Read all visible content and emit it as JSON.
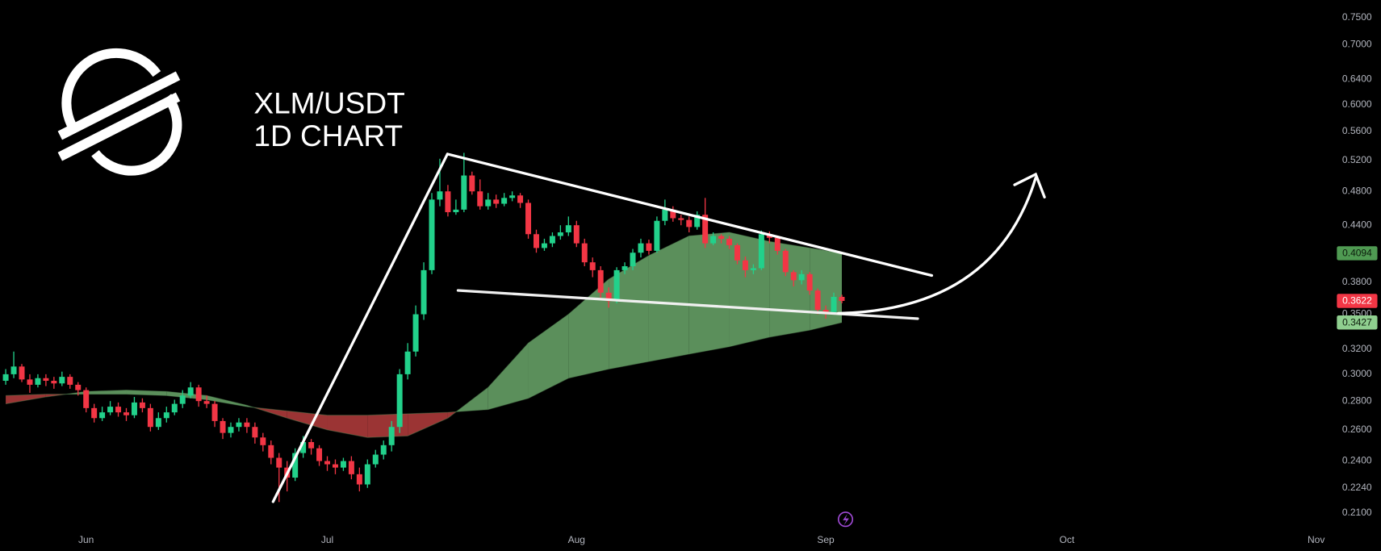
{
  "chart_data": {
    "type": "candlestick",
    "title": "XLM/USDT",
    "subtitle": "1D CHART",
    "log_scale": true,
    "grid": false,
    "colors": {
      "up": "#22d18b",
      "down": "#f23645"
    },
    "xlim": [
      -0.7,
      164.7
    ],
    "xticks": [
      {
        "value": 10,
        "label": "Jun"
      },
      {
        "value": 40,
        "label": "Jul"
      },
      {
        "value": 71,
        "label": "Aug"
      },
      {
        "value": 102,
        "label": "Sep"
      },
      {
        "value": 132,
        "label": "Oct"
      },
      {
        "value": 163,
        "label": "Nov"
      }
    ],
    "ylim": [
      0.202,
      0.785
    ],
    "yticks": [
      {
        "value": 0.75,
        "label": "0.7500"
      },
      {
        "value": 0.7,
        "label": "0.7000"
      },
      {
        "value": 0.64,
        "label": "0.6400"
      },
      {
        "value": 0.6,
        "label": "0.6000"
      },
      {
        "value": 0.56,
        "label": "0.5600"
      },
      {
        "value": 0.52,
        "label": "0.5200"
      },
      {
        "value": 0.48,
        "label": "0.4800"
      },
      {
        "value": 0.44,
        "label": "0.4400"
      },
      {
        "value": 0.38,
        "label": "0.3800"
      },
      {
        "value": 0.35,
        "label": "0.3500"
      },
      {
        "value": 0.32,
        "label": "0.3200"
      },
      {
        "value": 0.3,
        "label": "0.3000"
      },
      {
        "value": 0.28,
        "label": "0.2800"
      },
      {
        "value": 0.26,
        "label": "0.2600"
      },
      {
        "value": 0.24,
        "label": "0.2400"
      },
      {
        "value": 0.224,
        "label": "0.2240"
      },
      {
        "value": 0.21,
        "label": "0.2100"
      }
    ],
    "x": [
      0,
      1,
      2,
      3,
      4,
      5,
      6,
      7,
      8,
      9,
      10,
      11,
      12,
      13,
      14,
      15,
      16,
      17,
      18,
      19,
      20,
      21,
      22,
      23,
      24,
      25,
      26,
      27,
      28,
      29,
      30,
      31,
      32,
      33,
      34,
      35,
      36,
      37,
      38,
      39,
      40,
      41,
      42,
      43,
      44,
      45,
      46,
      47,
      48,
      49,
      50,
      51,
      52,
      53,
      54,
      55,
      56,
      57,
      58,
      59,
      60,
      61,
      62,
      63,
      64,
      65,
      66,
      67,
      68,
      69,
      70,
      71,
      72,
      73,
      74,
      75,
      76,
      77,
      78,
      79,
      80,
      81,
      82,
      83,
      84,
      85,
      86,
      87,
      88,
      89,
      90,
      91,
      92,
      93,
      94,
      95,
      96,
      97,
      98,
      99,
      100,
      101,
      102,
      103,
      104
    ],
    "open": [
      0.295,
      0.3,
      0.306,
      0.296,
      0.292,
      0.297,
      0.295,
      0.293,
      0.298,
      0.292,
      0.288,
      0.275,
      0.268,
      0.272,
      0.276,
      0.272,
      0.27,
      0.279,
      0.275,
      0.262,
      0.268,
      0.272,
      0.278,
      0.284,
      0.29,
      0.28,
      0.278,
      0.266,
      0.258,
      0.262,
      0.265,
      0.262,
      0.255,
      0.25,
      0.242,
      0.236,
      0.23,
      0.245,
      0.252,
      0.248,
      0.24,
      0.238,
      0.236,
      0.24,
      0.232,
      0.226,
      0.238,
      0.244,
      0.25,
      0.262,
      0.3,
      0.318,
      0.35,
      0.392,
      0.47,
      0.48,
      0.455,
      0.458,
      0.5,
      0.48,
      0.462,
      0.47,
      0.465,
      0.472,
      0.475,
      0.466,
      0.43,
      0.415,
      0.42,
      0.428,
      0.432,
      0.44,
      0.42,
      0.4,
      0.392,
      0.37,
      0.362,
      0.392,
      0.396,
      0.41,
      0.42,
      0.412,
      0.445,
      0.458,
      0.448,
      0.446,
      0.438,
      0.452,
      0.42,
      0.428,
      0.425,
      0.418,
      0.402,
      0.392,
      0.394,
      0.43,
      0.426,
      0.412,
      0.39,
      0.382,
      0.388,
      0.372,
      0.354,
      0.352,
      0.366
    ],
    "high": [
      0.304,
      0.318,
      0.308,
      0.3,
      0.3,
      0.3,
      0.298,
      0.302,
      0.3,
      0.294,
      0.29,
      0.278,
      0.276,
      0.28,
      0.279,
      0.275,
      0.283,
      0.282,
      0.278,
      0.272,
      0.276,
      0.281,
      0.288,
      0.294,
      0.292,
      0.284,
      0.28,
      0.268,
      0.265,
      0.268,
      0.268,
      0.265,
      0.258,
      0.253,
      0.245,
      0.24,
      0.248,
      0.256,
      0.254,
      0.25,
      0.243,
      0.241,
      0.242,
      0.243,
      0.236,
      0.241,
      0.247,
      0.253,
      0.266,
      0.304,
      0.325,
      0.358,
      0.4,
      0.478,
      0.522,
      0.488,
      0.47,
      0.53,
      0.505,
      0.495,
      0.478,
      0.476,
      0.478,
      0.48,
      0.478,
      0.47,
      0.435,
      0.425,
      0.432,
      0.44,
      0.45,
      0.445,
      0.425,
      0.405,
      0.396,
      0.375,
      0.395,
      0.4,
      0.414,
      0.425,
      0.424,
      0.45,
      0.47,
      0.462,
      0.452,
      0.45,
      0.456,
      0.472,
      0.432,
      0.43,
      0.428,
      0.42,
      0.406,
      0.398,
      0.434,
      0.433,
      0.428,
      0.414,
      0.392,
      0.392,
      0.39,
      0.374,
      0.358,
      0.37,
      0.368
    ],
    "low": [
      0.292,
      0.297,
      0.294,
      0.286,
      0.29,
      0.291,
      0.289,
      0.291,
      0.289,
      0.284,
      0.272,
      0.265,
      0.266,
      0.27,
      0.269,
      0.266,
      0.268,
      0.272,
      0.259,
      0.26,
      0.265,
      0.27,
      0.275,
      0.282,
      0.276,
      0.275,
      0.262,
      0.254,
      0.255,
      0.259,
      0.258,
      0.251,
      0.246,
      0.238,
      0.216,
      0.222,
      0.228,
      0.242,
      0.244,
      0.237,
      0.234,
      0.232,
      0.234,
      0.229,
      0.222,
      0.224,
      0.236,
      0.241,
      0.246,
      0.258,
      0.296,
      0.314,
      0.345,
      0.388,
      0.462,
      0.45,
      0.452,
      0.455,
      0.476,
      0.458,
      0.458,
      0.46,
      0.462,
      0.468,
      0.46,
      0.425,
      0.41,
      0.412,
      0.416,
      0.424,
      0.428,
      0.416,
      0.396,
      0.385,
      0.365,
      0.356,
      0.36,
      0.388,
      0.392,
      0.405,
      0.408,
      0.41,
      0.44,
      0.444,
      0.44,
      0.432,
      0.435,
      0.415,
      0.418,
      0.42,
      0.414,
      0.398,
      0.385,
      0.388,
      0.392,
      0.42,
      0.408,
      0.386,
      0.376,
      0.378,
      0.368,
      0.35,
      0.346,
      0.35,
      0.36
    ],
    "close": [
      0.3,
      0.306,
      0.296,
      0.292,
      0.297,
      0.295,
      0.293,
      0.298,
      0.292,
      0.288,
      0.275,
      0.268,
      0.272,
      0.276,
      0.272,
      0.27,
      0.279,
      0.275,
      0.262,
      0.268,
      0.272,
      0.278,
      0.284,
      0.29,
      0.28,
      0.278,
      0.266,
      0.258,
      0.262,
      0.265,
      0.262,
      0.255,
      0.25,
      0.242,
      0.236,
      0.23,
      0.245,
      0.252,
      0.248,
      0.24,
      0.238,
      0.236,
      0.24,
      0.232,
      0.226,
      0.238,
      0.244,
      0.25,
      0.262,
      0.3,
      0.318,
      0.35,
      0.392,
      0.47,
      0.48,
      0.455,
      0.458,
      0.5,
      0.48,
      0.462,
      0.47,
      0.465,
      0.472,
      0.475,
      0.466,
      0.43,
      0.415,
      0.42,
      0.428,
      0.432,
      0.44,
      0.42,
      0.4,
      0.392,
      0.37,
      0.362,
      0.392,
      0.396,
      0.41,
      0.42,
      0.412,
      0.445,
      0.458,
      0.448,
      0.446,
      0.438,
      0.452,
      0.42,
      0.428,
      0.425,
      0.418,
      0.402,
      0.392,
      0.394,
      0.43,
      0.426,
      0.412,
      0.39,
      0.382,
      0.388,
      0.372,
      0.354,
      0.352,
      0.366,
      0.3622
    ],
    "ribbon": {
      "up_color": "#5b8f5b",
      "down_color": "#9b3434",
      "fast_tag_color": "#4f9a52",
      "slow_tag_color": "#8fcf8f",
      "x": [
        0,
        5,
        10,
        15,
        20,
        25,
        30,
        35,
        40,
        45,
        50,
        55,
        60,
        65,
        70,
        75,
        80,
        85,
        90,
        95,
        100,
        104
      ],
      "fast": [
        0.278,
        0.283,
        0.287,
        0.288,
        0.287,
        0.284,
        0.277,
        0.268,
        0.26,
        0.255,
        0.256,
        0.268,
        0.29,
        0.325,
        0.35,
        0.383,
        0.407,
        0.428,
        0.432,
        0.422,
        0.415,
        0.4094
      ],
      "slow": [
        0.284,
        0.285,
        0.285,
        0.285,
        0.284,
        0.281,
        0.276,
        0.273,
        0.27,
        0.27,
        0.271,
        0.272,
        0.274,
        0.282,
        0.297,
        0.304,
        0.31,
        0.316,
        0.322,
        0.33,
        0.336,
        0.3427
      ]
    }
  }
}
